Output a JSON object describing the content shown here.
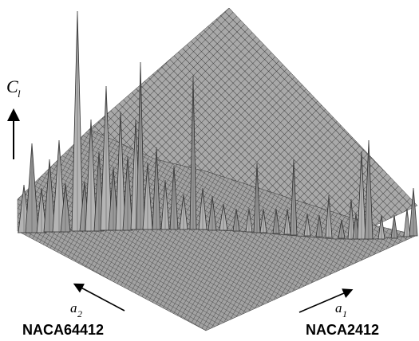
{
  "chart_data": {
    "type": "surface",
    "z_axis": {
      "symbol": "C",
      "subscript": "l"
    },
    "axis_a1": {
      "symbol": "a",
      "subscript": "1",
      "airfoil": "NACA2412"
    },
    "axis_a2": {
      "symbol": "a",
      "subscript": "2",
      "airfoil": "NACA64412"
    },
    "grid": true,
    "colors": {
      "surface": "#a9a9a9",
      "mesh": "#3a3a3a",
      "arrow": "#000000"
    }
  }
}
